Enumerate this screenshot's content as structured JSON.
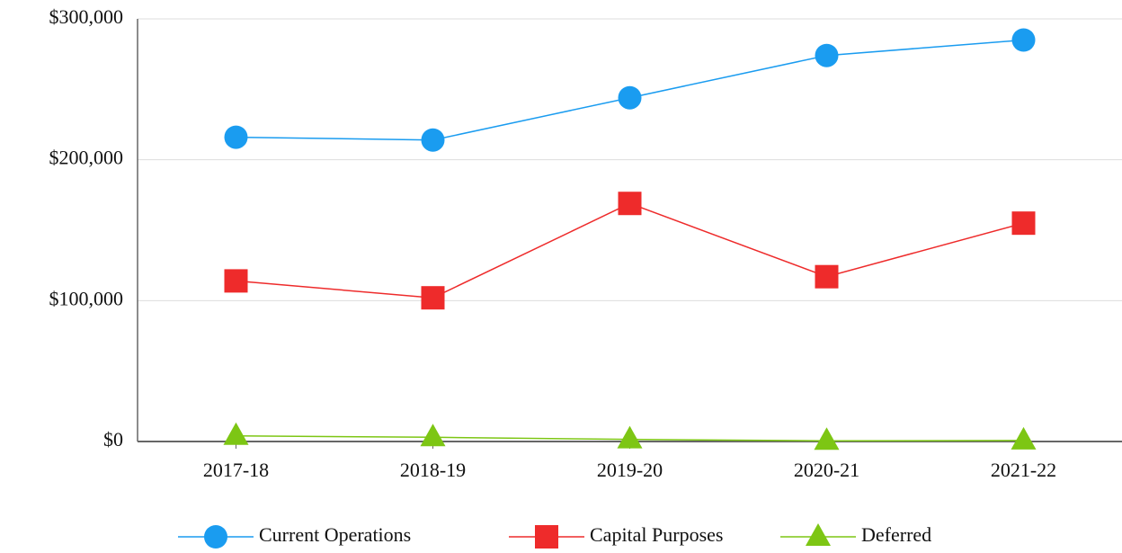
{
  "chart_data": {
    "type": "line",
    "categories": [
      "2017-18",
      "2018-19",
      "2019-20",
      "2020-21",
      "2021-22"
    ],
    "series": [
      {
        "name": "Current Operations",
        "color": "#1a9cf0",
        "marker": "circle",
        "values": [
          216000,
          214000,
          244000,
          274000,
          285000
        ]
      },
      {
        "name": "Capital Purposes",
        "color": "#ee2b2b",
        "marker": "square",
        "values": [
          114000,
          102000,
          169000,
          117000,
          155000
        ]
      },
      {
        "name": "Deferred",
        "color": "#7dc614",
        "marker": "triangle",
        "values": [
          4000,
          3000,
          1500,
          500,
          700
        ]
      }
    ],
    "ylim": [
      0,
      300000
    ],
    "yticks": [
      {
        "value": 0,
        "label": "$0"
      },
      {
        "value": 100000,
        "label": "$100,000"
      },
      {
        "value": 200000,
        "label": "$200,000"
      },
      {
        "value": 300000,
        "label": "$300,000"
      }
    ],
    "grid": true,
    "legend": "bottom"
  }
}
